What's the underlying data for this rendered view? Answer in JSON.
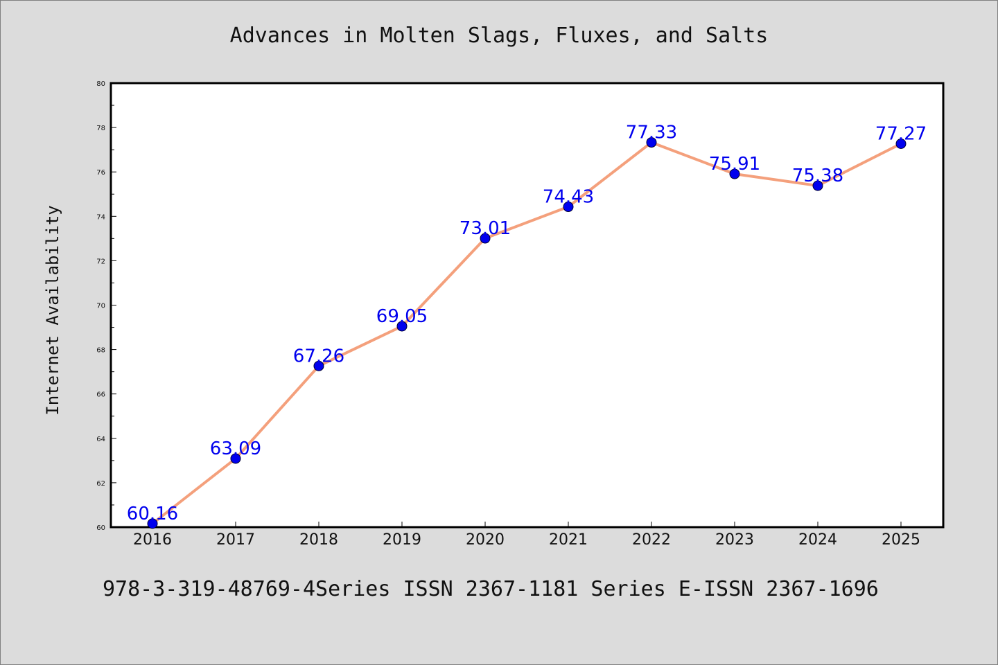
{
  "chart_data": {
    "type": "line",
    "title": "Advances in Molten Slags, Fluxes, and Salts",
    "xlabel": "",
    "ylabel": "Internet Availability",
    "categories": [
      "2016",
      "2017",
      "2018",
      "2019",
      "2020",
      "2021",
      "2022",
      "2023",
      "2024",
      "2025"
    ],
    "series": [
      {
        "values": [
          60.16,
          63.09,
          67.26,
          69.05,
          73.01,
          74.43,
          77.33,
          75.91,
          75.38,
          77.27
        ],
        "labels": [
          "60.16",
          "63.09",
          "67.26",
          "69.05",
          "73.01",
          "74.43",
          "77.33",
          "75.91",
          "75.38",
          "77.27"
        ]
      }
    ],
    "ylim": [
      60,
      80
    ],
    "yticks": [
      "60",
      "62",
      "64",
      "66",
      "68",
      "70",
      "72",
      "74",
      "76",
      "78",
      "80"
    ],
    "grid": false,
    "legend": "none",
    "colors": {
      "line": "#f4a07c",
      "marker": "#0000ee",
      "label": "#0000ee",
      "background": "#dcdcdc",
      "plot_bg": "#ffffff"
    }
  },
  "footer": "978-3-319-48769-4Series ISSN 2367-1181 Series E-ISSN 2367-1696"
}
